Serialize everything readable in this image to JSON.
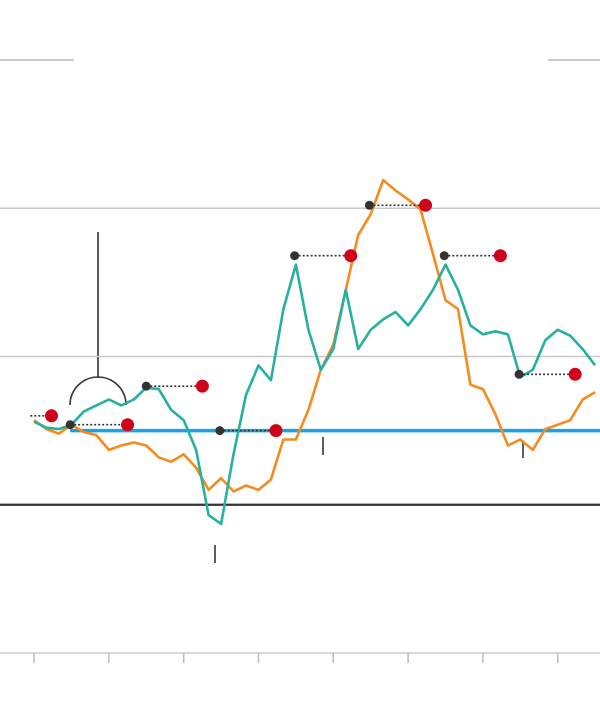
{
  "chart_data": {
    "type": "line",
    "x": [
      0,
      1,
      2,
      3,
      4,
      5,
      6,
      7,
      8,
      9,
      10,
      11,
      12,
      13,
      14,
      15,
      16,
      17,
      18,
      19,
      20,
      21,
      22,
      23,
      24,
      25,
      26,
      27,
      28,
      29,
      30,
      31,
      32,
      33,
      34,
      35,
      36,
      37,
      38,
      39,
      40,
      41,
      42,
      43,
      44,
      45
    ],
    "series": [
      {
        "color": "#f58a1f",
        "values": [
          57,
          51,
          48,
          54,
          49,
          47,
          37,
          40,
          42,
          40,
          32,
          29,
          34,
          25,
          10,
          18,
          9,
          13,
          10,
          17,
          44,
          44,
          64,
          91,
          108,
          145,
          182,
          196,
          219,
          212,
          206,
          199,
          169,
          138,
          132,
          81,
          78,
          61,
          40,
          44,
          37,
          51,
          54,
          57,
          71,
          76
        ]
      },
      {
        "color": "#26b0a0",
        "values": [
          56,
          52,
          51,
          54,
          63,
          67,
          71,
          67,
          71,
          79,
          78,
          64,
          57,
          37,
          -7,
          -13,
          34,
          74,
          94,
          84,
          132,
          162,
          118,
          91,
          105,
          145,
          105,
          118,
          125,
          130,
          121,
          132,
          145,
          162,
          145,
          121,
          115,
          117,
          115,
          86,
          91,
          111,
          118,
          114,
          105,
          94
        ]
      }
    ],
    "reference": {
      "y": 50,
      "x_from": 2.9,
      "color": "#1aa3e0"
    },
    "markers": [
      {
        "x": 2.9,
        "x2": 7.5,
        "y": 54
      },
      {
        "x": 9.0,
        "x2": 13.5,
        "y": 80
      },
      {
        "x": 14.9,
        "x2": 19.4,
        "y": 50
      },
      {
        "x": 20.9,
        "x2": 25.4,
        "y": 168
      },
      {
        "x": 26.9,
        "x2": 31.4,
        "y": 202
      },
      {
        "x": 32.9,
        "x2": 37.4,
        "y": 168
      },
      {
        "x": 38.9,
        "x2": 43.4,
        "y": 88
      }
    ],
    "highlight": {
      "from": -0.3,
      "x": 1.4,
      "y": 60
    },
    "marker_color": "#d0021b",
    "xlim": [
      -2.73,
      45.39
    ],
    "xticks": [
      0,
      6,
      12,
      18,
      24,
      30,
      36,
      42
    ],
    "ylim": [
      -100,
      300
    ],
    "yticks": [
      0,
      100,
      200,
      300
    ],
    "grid": true
  }
}
